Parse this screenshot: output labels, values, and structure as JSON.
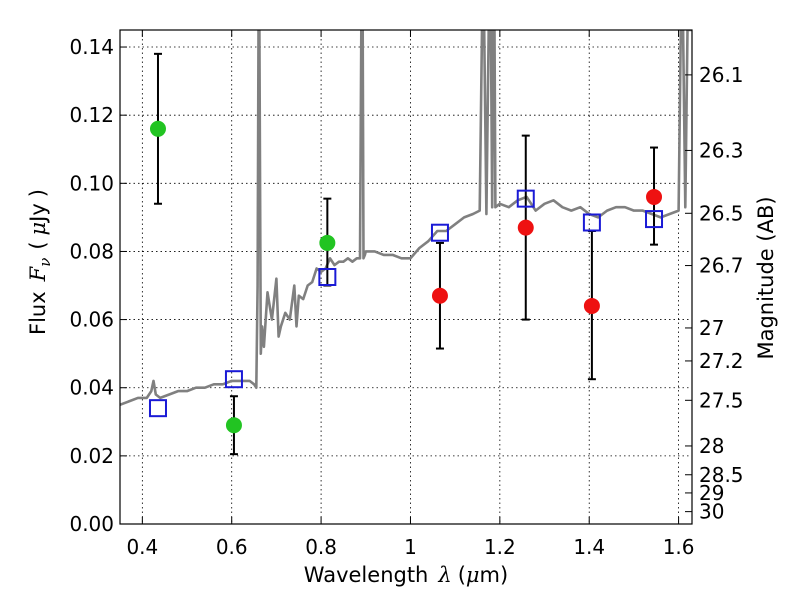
{
  "chart_data": {
    "type": "scatter",
    "xlabel": "Wavelength",
    "xlabel_symbol": "λ",
    "xlabel_unit_open": "(",
    "xlabel_unit_mu": "μ",
    "xlabel_unit_rest": "m)",
    "ylabel": "Flux",
    "ylabel_symbol": "F",
    "ylabel_subscript": "ν",
    "ylabel_unit_open": "(",
    "ylabel_unit_mu": "μ",
    "ylabel_unit_rest": "Jy",
    "ylabel_unit_close": ")",
    "y2label": "Magnitude (AB)",
    "xlim": [
      0.35,
      1.63
    ],
    "ylim": [
      0.0,
      0.145
    ],
    "xticks": [
      0.4,
      0.6,
      0.8,
      1.0,
      1.2,
      1.4,
      1.6
    ],
    "xtick_labels": [
      "0.4",
      "0.6",
      "0.8",
      "1",
      "1.2",
      "1.4",
      "1.6"
    ],
    "yticks": [
      0.0,
      0.02,
      0.04,
      0.06,
      0.08,
      0.1,
      0.12,
      0.14
    ],
    "ytick_labels": [
      "0.00",
      "0.02",
      "0.04",
      "0.06",
      "0.08",
      "0.10",
      "0.12",
      "0.14"
    ],
    "magnitude_ticks": [
      {
        "mag": 26.1,
        "label": "26.1"
      },
      {
        "mag": 26.3,
        "label": "26.3"
      },
      {
        "mag": 26.5,
        "label": "26.5"
      },
      {
        "mag": 26.7,
        "label": "26.7"
      },
      {
        "mag": 27.0,
        "label": "27"
      },
      {
        "mag": 27.2,
        "label": "27.2"
      },
      {
        "mag": 27.5,
        "label": "27.5"
      },
      {
        "mag": 28.0,
        "label": "28"
      },
      {
        "mag": 28.5,
        "label": "28.5"
      },
      {
        "mag": 29.0,
        "label": "29"
      },
      {
        "mag": 30.0,
        "label": "30"
      }
    ],
    "grid": true,
    "colors": {
      "green": "#22c422",
      "red": "#ee1111",
      "model": "#1a1ad6",
      "spectrum": "#808080"
    },
    "series": [
      {
        "marker": "circle-green",
        "x": [
          0.435,
          0.605,
          0.814
        ],
        "y": [
          0.116,
          0.029,
          0.0825
        ],
        "yerr_low": [
          0.094,
          0.0205,
          0.07
        ],
        "yerr_high": [
          0.138,
          0.0375,
          0.0955
        ]
      },
      {
        "marker": "circle-red",
        "x": [
          1.066,
          1.258,
          1.406,
          1.545
        ],
        "y": [
          0.067,
          0.087,
          0.064,
          0.096
        ],
        "yerr_low": [
          0.0515,
          0.06,
          0.0425,
          0.082
        ],
        "yerr_high": [
          0.0825,
          0.114,
          0.086,
          0.1105
        ]
      },
      {
        "marker": "square-blue",
        "x": [
          0.435,
          0.605,
          0.814,
          1.066,
          1.258,
          1.406,
          1.545
        ],
        "y": [
          0.034,
          0.0425,
          0.0725,
          0.0855,
          0.0955,
          0.0885,
          0.0895
        ]
      },
      {
        "marker": "line-gray",
        "x": [
          0.35,
          0.37,
          0.39,
          0.41,
          0.42,
          0.425,
          0.43,
          0.44,
          0.46,
          0.48,
          0.5,
          0.52,
          0.54,
          0.56,
          0.58,
          0.6,
          0.62,
          0.64,
          0.65,
          0.655,
          0.658,
          0.66,
          0.662,
          0.665,
          0.668,
          0.672,
          0.68,
          0.69,
          0.7,
          0.705,
          0.71,
          0.72,
          0.73,
          0.74,
          0.745,
          0.75,
          0.76,
          0.77,
          0.78,
          0.79,
          0.8,
          0.81,
          0.82,
          0.83,
          0.84,
          0.85,
          0.86,
          0.87,
          0.88,
          0.887,
          0.89,
          0.893,
          0.895,
          0.898,
          0.9,
          0.92,
          0.94,
          0.96,
          0.98,
          1.0,
          1.02,
          1.04,
          1.06,
          1.08,
          1.1,
          1.12,
          1.14,
          1.155,
          1.16,
          1.165,
          1.17,
          1.175,
          1.18,
          1.183,
          1.185,
          1.188,
          1.19,
          1.2,
          1.22,
          1.24,
          1.26,
          1.28,
          1.3,
          1.32,
          1.34,
          1.36,
          1.38,
          1.4,
          1.42,
          1.44,
          1.46,
          1.48,
          1.5,
          1.52,
          1.54,
          1.56,
          1.58,
          1.6,
          1.605,
          1.61,
          1.615,
          1.62,
          1.63
        ],
        "y": [
          0.035,
          0.036,
          0.037,
          0.037,
          0.039,
          0.042,
          0.038,
          0.037,
          0.038,
          0.039,
          0.039,
          0.04,
          0.04,
          0.041,
          0.041,
          0.042,
          0.042,
          0.042,
          0.041,
          0.04,
          0.07,
          0.145,
          0.145,
          0.05,
          0.058,
          0.052,
          0.068,
          0.06,
          0.072,
          0.055,
          0.058,
          0.062,
          0.06,
          0.07,
          0.058,
          0.067,
          0.066,
          0.07,
          0.071,
          0.075,
          0.074,
          0.075,
          0.078,
          0.076,
          0.077,
          0.077,
          0.078,
          0.077,
          0.078,
          0.078,
          0.145,
          0.145,
          0.078,
          0.079,
          0.08,
          0.08,
          0.079,
          0.079,
          0.078,
          0.078,
          0.081,
          0.083,
          0.086,
          0.086,
          0.088,
          0.09,
          0.091,
          0.092,
          0.145,
          0.145,
          0.091,
          0.145,
          0.145,
          0.093,
          0.145,
          0.145,
          0.093,
          0.094,
          0.093,
          0.095,
          0.096,
          0.092,
          0.094,
          0.095,
          0.093,
          0.092,
          0.093,
          0.091,
          0.09,
          0.092,
          0.093,
          0.093,
          0.092,
          0.092,
          0.091,
          0.09,
          0.091,
          0.092,
          0.145,
          0.145,
          0.093,
          0.145,
          0.145
        ]
      }
    ]
  }
}
